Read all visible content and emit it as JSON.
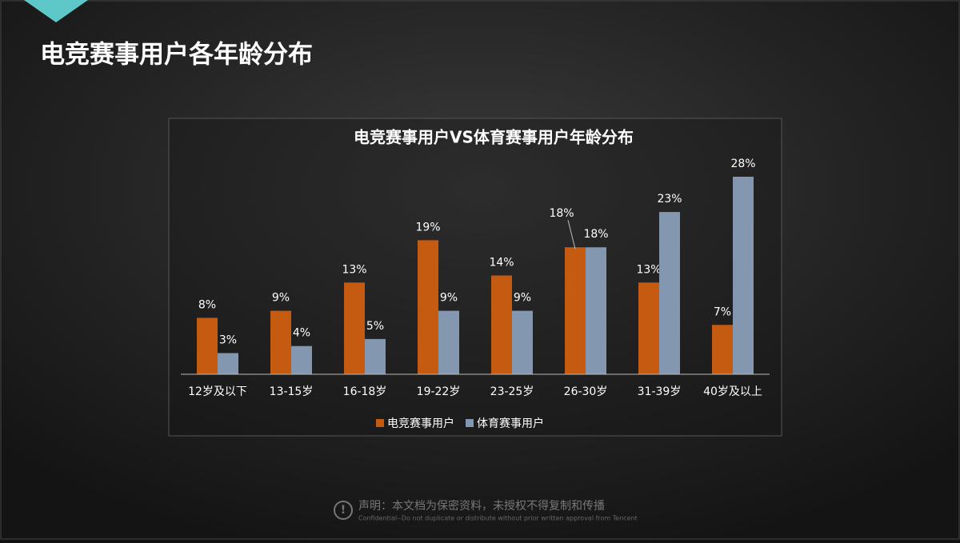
{
  "header": {
    "title": "电竞赛事用户各年龄分布"
  },
  "chart_data": {
    "type": "bar",
    "title": "电竞赛事用户VS体育赛事用户年龄分布",
    "categories": [
      "12岁及以下",
      "13-15岁",
      "16-18岁",
      "19-22岁",
      "23-25岁",
      "26-30岁",
      "31-39岁",
      "40岁及以上"
    ],
    "series": [
      {
        "name": "电竞赛事用户",
        "color": "#c55a11",
        "values": [
          8,
          9,
          13,
          19,
          14,
          18,
          13,
          7
        ],
        "value_labels": [
          "8%",
          "9%",
          "13%",
          "19%",
          "14%",
          "18%",
          "13%",
          "7%"
        ]
      },
      {
        "name": "体育赛事用户",
        "color": "#8497b0",
        "values": [
          3,
          4,
          5,
          9,
          9,
          18,
          23,
          28
        ],
        "value_labels": [
          "3%",
          "4%",
          "5%",
          "9%",
          "9%",
          "18%",
          "23%",
          "28%"
        ]
      }
    ],
    "legend": "bottom"
  },
  "footer": {
    "notice": "声明：本文档为保密资料，未授权不得复制和传播",
    "confidential": "Confidential--Do not duplicate or distribute without prior written approval from Tencent"
  }
}
